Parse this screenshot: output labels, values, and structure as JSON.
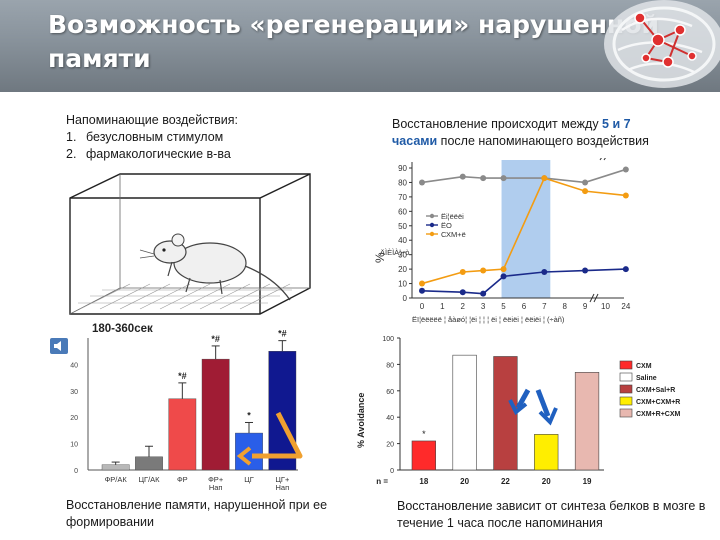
{
  "slide": {
    "title": "Возможность «регенерации» нарушенной\nпамяти",
    "top_left": {
      "heading": "Напоминающие воздействия:",
      "items": [
        {
          "num": "1.",
          "text": "безусловным стимулом"
        },
        {
          "num": "2.",
          "text": "фармакологические в-ва"
        }
      ]
    },
    "top_right": {
      "pre": "Восстановление происходит между ",
      "highlight_1": "5 и 7",
      "highlight_2": "часами",
      "post": " после напоминающего воздействия"
    },
    "bottom_left": "Восстановление памяти, нарушенной при ее формировании",
    "bottom_right": "Восстановление зависит от синтеза белков в мозге в течение 1 часа после напоминания"
  },
  "colors": {
    "header": "#8a949d",
    "accent_blue": "#1f5aa6",
    "arrow_orange": "#f0a030",
    "arrow_blue": "#2060c0"
  },
  "icons": {
    "header_art": "brain-network-icon",
    "speaker": "speaker-icon",
    "rat": "rat-in-box-illustration"
  },
  "chart_data": [
    {
      "type": "line",
      "ylabel": "%",
      "ylim": [
        0,
        90
      ],
      "y_ticks": [
        0,
        10,
        20,
        30,
        40,
        50,
        60,
        70,
        80,
        90
      ],
      "x_ticks": [
        "0",
        "1",
        "2",
        "3",
        "5",
        "6",
        "7",
        "8",
        "9",
        "10",
        "24"
      ],
      "x": [
        "0",
        "2",
        "3",
        "5",
        "7",
        "9",
        "24"
      ],
      "xlabel": "Ёї¦ёёёёё ¦ åàøó¦ ¦ёі ¦ ¦ ¦ ёі ¦ ёёіёі ¦ ёёіёі ¦ (÷àñ)",
      "highlight_band": [
        "5",
        "7"
      ],
      "legend": [
        "Ёі¦ёёёі",
        "ЁО",
        "СХМ+ё"
      ],
      "overlay_text": "ÄÌÈÌÀ¦÷ò",
      "series": [
        {
          "name": "Ёі¦ёёёі",
          "color": "#8a8a8a",
          "points": [
            [
              "0",
              80
            ],
            [
              "2",
              84
            ],
            [
              "3",
              83
            ],
            [
              "5",
              83
            ],
            [
              "7",
              83
            ],
            [
              "9",
              80
            ],
            [
              "24",
              89
            ]
          ]
        },
        {
          "name": "ЁО",
          "color": "#1a2a8a",
          "points": [
            [
              "0",
              5
            ],
            [
              "2",
              4
            ],
            [
              "3",
              3
            ],
            [
              "5",
              15
            ],
            [
              "7",
              18
            ],
            [
              "9",
              19
            ],
            [
              "24",
              20
            ]
          ]
        },
        {
          "name": "СХМ+ё",
          "color": "#f39c12",
          "points": [
            [
              "0",
              10
            ],
            [
              "2",
              18
            ],
            [
              "3",
              19
            ],
            [
              "5",
              20
            ],
            [
              "7",
              83
            ],
            [
              "9",
              74
            ],
            [
              "24",
              71
            ]
          ]
        }
      ]
    },
    {
      "type": "bar",
      "title": "180-360сек",
      "ylim": [
        0,
        50
      ],
      "y_ticks": [
        "0",
        "10",
        "20",
        "30",
        "40"
      ],
      "categories": [
        "ФР/АК",
        "ЦГ/АК",
        "ФР",
        "ФР+\nНап",
        "ЦГ",
        "ЦГ+\nНап"
      ],
      "values": [
        2,
        5,
        27,
        42,
        14,
        45
      ],
      "errors": [
        1,
        4,
        6,
        5,
        4,
        4
      ],
      "colors": [
        "#b8b8b8",
        "#7a7a7a",
        "#ef4a4a",
        "#a01c34",
        "#2a5ee8",
        "#101890"
      ],
      "annotations": [
        "",
        "",
        "*#",
        "*#",
        "*",
        "*#"
      ]
    },
    {
      "type": "bar",
      "ylabel": "% Avoidance",
      "ylim": [
        0,
        100
      ],
      "y_ticks": [
        "0",
        "20",
        "40",
        "60",
        "80",
        "100"
      ],
      "n_label": "n =",
      "n_values": [
        "18",
        "20",
        "22",
        "20",
        "19"
      ],
      "values": [
        22,
        87,
        86,
        27,
        74
      ],
      "colors": [
        "#ff2a2a",
        "#ffffff",
        "#b84040",
        "#ffee00",
        "#e8b8b0"
      ],
      "annotations": [
        "*",
        "",
        "",
        "",
        ""
      ],
      "legend": [
        "CXM",
        "Saline",
        "CXM+Sal+R",
        "CXM+CXM+R",
        "CXM+R+CXM"
      ]
    }
  ]
}
